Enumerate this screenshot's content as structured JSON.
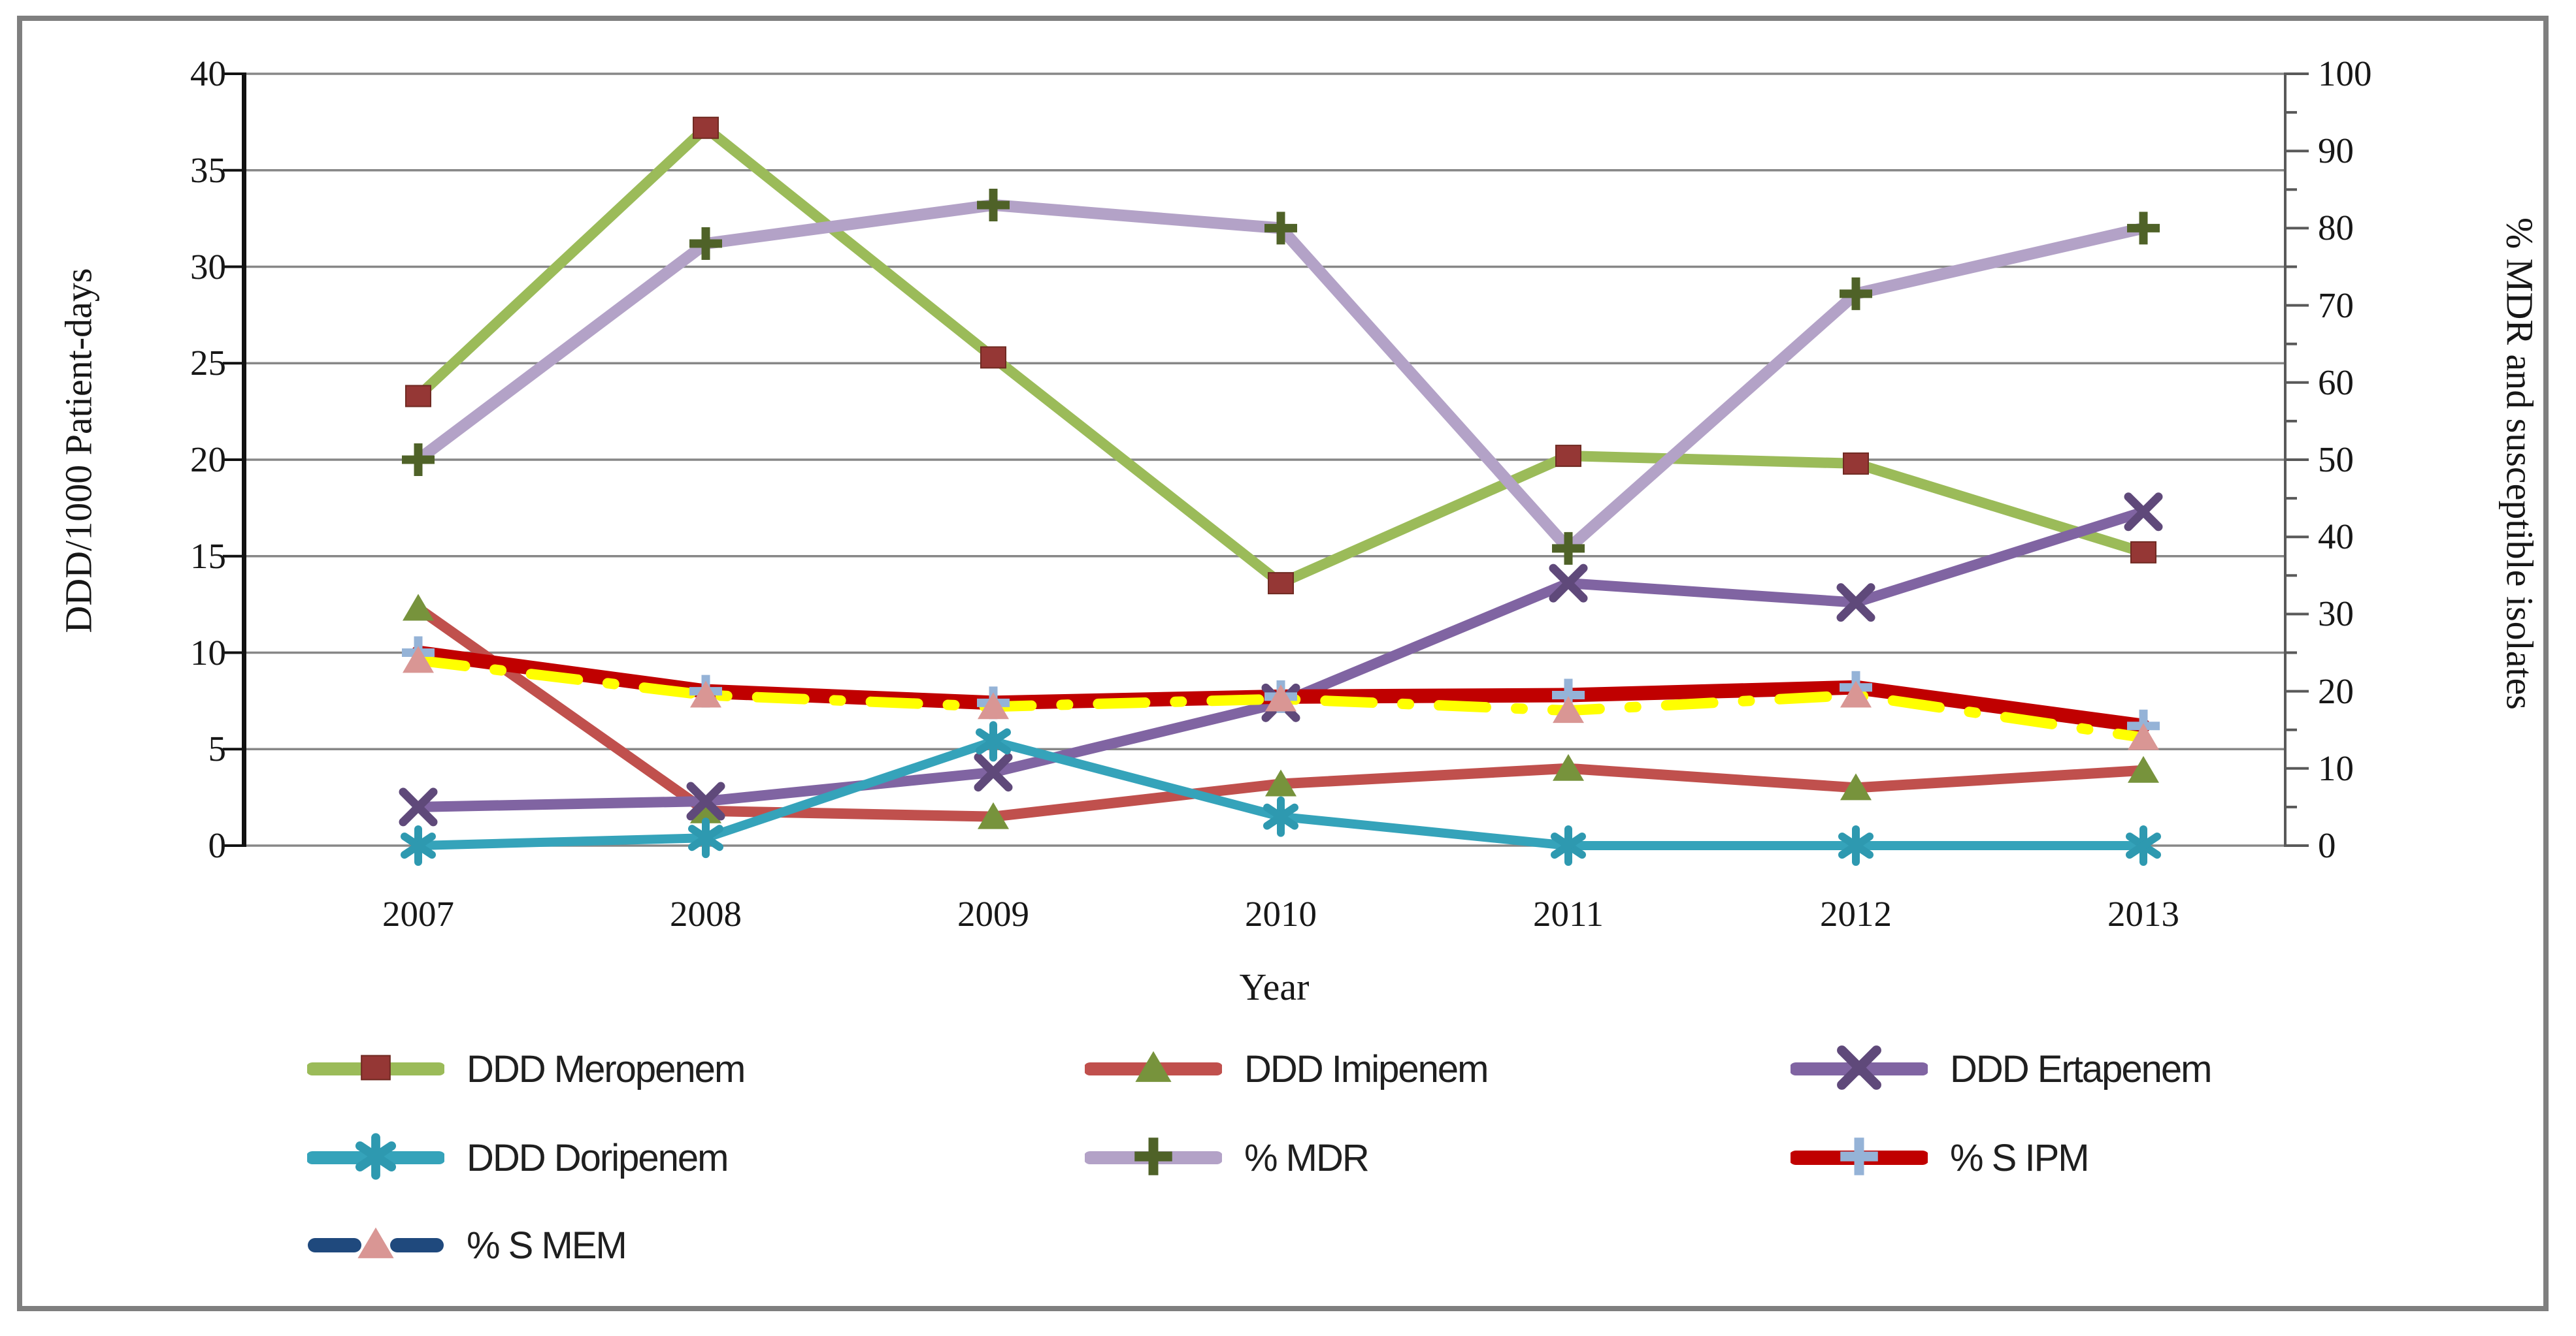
{
  "chart_data": {
    "type": "line",
    "categories": [
      "2007",
      "2008",
      "2009",
      "2010",
      "2011",
      "2012",
      "2013"
    ],
    "xlabel": "Year",
    "left_axis": {
      "label": "DDD/1000 Patient-days",
      "min": 0,
      "max": 40,
      "tick_step": 5
    },
    "right_axis": {
      "label": "% MDR and susceptible isolates",
      "min": 0,
      "max": 100,
      "tick_step": 10
    },
    "grid": true,
    "legend_position": "bottom",
    "series": [
      {
        "name": "DDD Meropenem",
        "axis": "left",
        "line_color": "#9bbb59",
        "line_width": 16,
        "dashed": false,
        "marker": "square",
        "marker_color": "#953735",
        "values": [
          23.3,
          37.2,
          25.3,
          13.6,
          20.2,
          19.8,
          15.2
        ]
      },
      {
        "name": "DDD Imipenem",
        "axis": "left",
        "line_color": "#c0504d",
        "line_width": 16,
        "dashed": false,
        "marker": "triangle",
        "marker_color": "#77933c",
        "values": [
          12.3,
          1.8,
          1.5,
          3.2,
          4.0,
          3.0,
          3.9
        ]
      },
      {
        "name": "DDD Ertapenem",
        "axis": "left",
        "line_color": "#8064a2",
        "line_width": 16,
        "dashed": false,
        "marker": "x",
        "marker_color": "#5f497a",
        "values": [
          2.0,
          2.3,
          3.8,
          7.4,
          13.6,
          12.6,
          17.3
        ]
      },
      {
        "name": "DDD Doripenem",
        "axis": "left",
        "line_color": "#35a3ba",
        "line_width": 14,
        "dashed": false,
        "marker": "asterisk",
        "marker_color": "#2e99b0",
        "values": [
          0,
          0.4,
          5.4,
          1.5,
          0,
          0,
          0
        ]
      },
      {
        "name": "% MDR",
        "axis": "right",
        "line_color": "#b3a2c7",
        "line_width": 18,
        "dashed": false,
        "marker": "plus",
        "marker_color": "#4f6228",
        "values": [
          50,
          78,
          83,
          80,
          38.5,
          71.5,
          80
        ]
      },
      {
        "name": "% S IPM",
        "axis": "right",
        "line_color": "#c00000",
        "line_width": 22,
        "dashed": false,
        "marker": "plus",
        "marker_color": "#95b3d7",
        "values": [
          25,
          20,
          18.5,
          19.3,
          19.5,
          20.5,
          15.5
        ]
      },
      {
        "name": "% S MEM",
        "axis": "right",
        "line_color": "#ffff00",
        "line_width": 16,
        "dashed": true,
        "legend_line_color": "#1f497d",
        "marker": "triangle",
        "marker_color": "#d99694",
        "values": [
          24,
          19.5,
          18,
          19,
          17.5,
          19.5,
          14
        ]
      }
    ]
  }
}
